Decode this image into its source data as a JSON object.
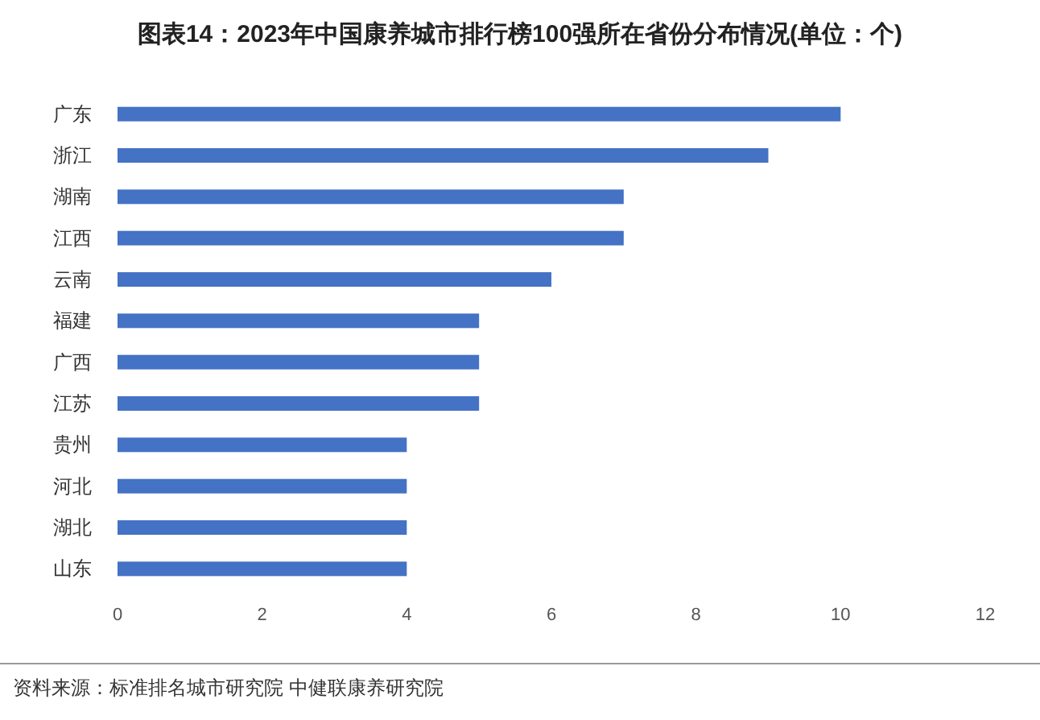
{
  "chart_data": {
    "type": "bar",
    "orientation": "horizontal",
    "title": "图表14：2023年中国康养城市排行榜100强所在省份分布情况(单位：个)",
    "categories": [
      "广东",
      "浙江",
      "湖南",
      "江西",
      "云南",
      "福建",
      "广西",
      "江苏",
      "贵州",
      "河北",
      "湖北",
      "山东"
    ],
    "values": [
      10,
      9,
      7,
      7,
      6,
      5,
      5,
      5,
      4,
      4,
      4,
      4
    ],
    "color": "#4472c4",
    "xlim": [
      0,
      12
    ],
    "xticks": [
      0,
      2,
      4,
      6,
      8,
      10,
      12
    ],
    "annotations": [
      "资料来源：标准排名城市研究院 中健联康养研究院"
    ]
  }
}
